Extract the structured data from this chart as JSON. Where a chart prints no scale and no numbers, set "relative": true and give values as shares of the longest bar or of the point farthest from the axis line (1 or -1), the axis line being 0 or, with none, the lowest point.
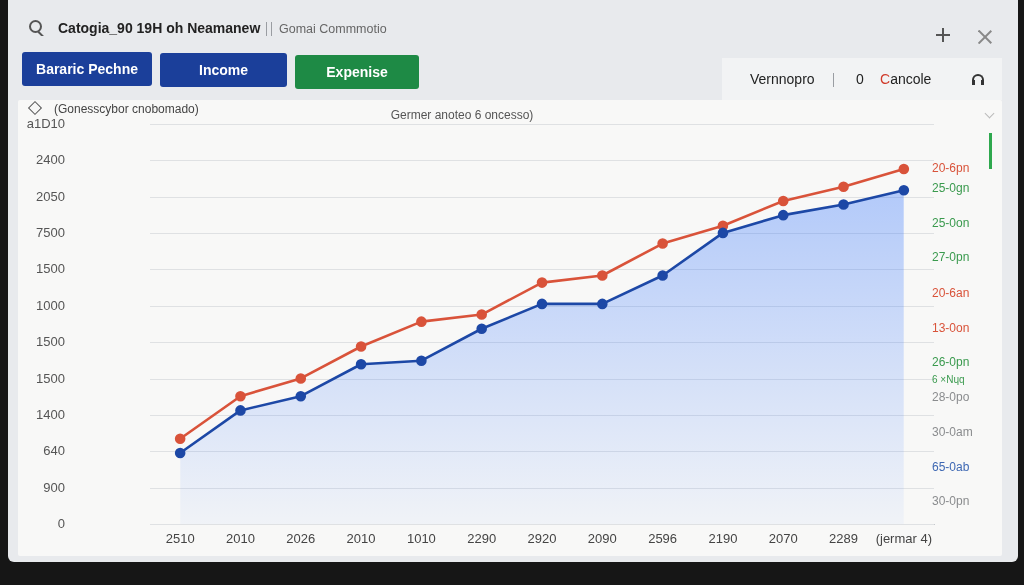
{
  "chart_data": {
    "type": "line",
    "title": "Catogia_90 19H oh Neamanew",
    "subtitle": "Gomai Commmotio",
    "ylabel": "(Gonesscybor cnobomado)",
    "annotations": [
      "Germer anoteo 6 oncesso)",
      "Bararic Pechne",
      "Income",
      "Expenise",
      "Vernnopro",
      "0",
      "Cancole",
      "a1D10",
      "2400",
      "2050",
      "7500",
      "1500",
      "1000",
      "1500",
      "1500",
      "1400",
      "640",
      "900",
      "0",
      "20-6pn",
      "25-0gn",
      "25-0on",
      "27-0pn",
      "20-6an",
      "13-0on",
      "26-0pn",
      "6 ×Nɥq",
      "28-0po",
      "30-0am",
      "65-0ab",
      "30-0pn"
    ],
    "categories": [
      "2510",
      "2010",
      "2026",
      "2010",
      "1010",
      "2290",
      "2920",
      "2090",
      "2596",
      "2190",
      "2070",
      "2289",
      "(jermar 4)"
    ],
    "relative": true,
    "series": [
      {
        "type": "area",
        "color": "#1d48a6",
        "values": [
          0.2,
          0.32,
          0.36,
          0.45,
          0.46,
          0.55,
          0.62,
          0.62,
          0.7,
          0.82,
          0.87,
          0.9,
          0.94
        ]
      },
      {
        "color": "#d9533a",
        "values": [
          0.24,
          0.36,
          0.41,
          0.5,
          0.57,
          0.59,
          0.68,
          0.7,
          0.79,
          0.84,
          0.91,
          0.95,
          1
        ]
      }
    ],
    "grid": "y",
    "legend": false,
    "marker": "circle"
  }
}
